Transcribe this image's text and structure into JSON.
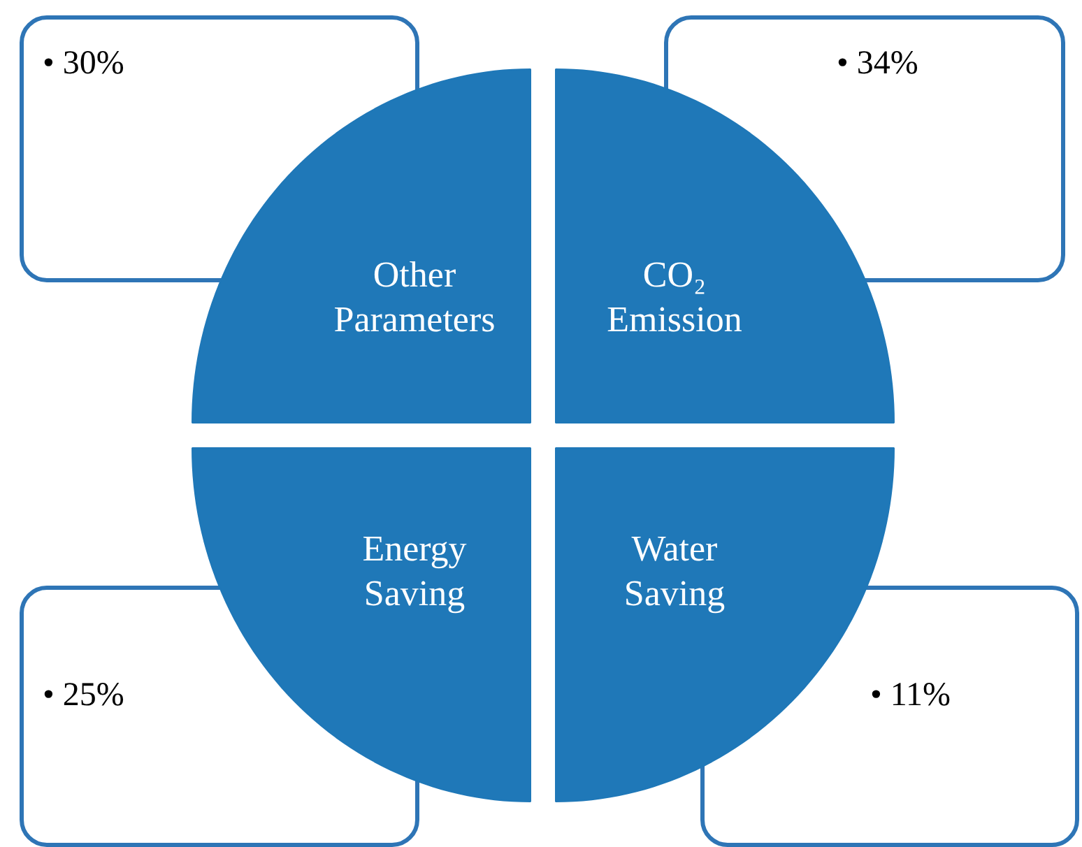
{
  "chart_data": {
    "type": "other",
    "categories": [
      "Other Parameters",
      "CO₂ Emission",
      "Energy Saving",
      "Water Saving"
    ],
    "values": [
      30,
      34,
      25,
      11
    ],
    "value_labels": [
      "• 30%",
      "• 34%",
      "• 25%",
      "• 11%"
    ],
    "colors": [
      "#1f78b8",
      "#1f78b8",
      "#1f78b8",
      "#1f78b8"
    ]
  }
}
